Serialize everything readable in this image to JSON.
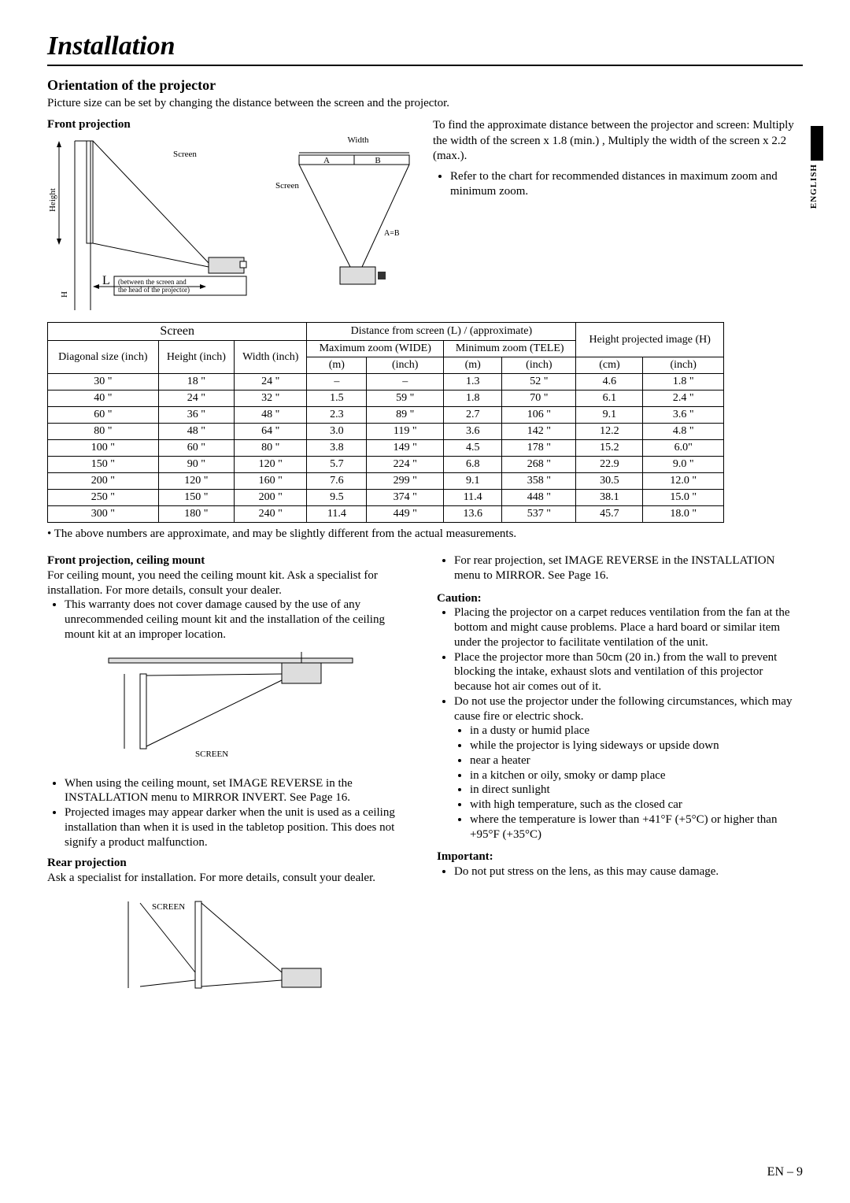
{
  "pageTitle": "Installation",
  "sectionHeading": "Orientation of the projector",
  "intro": "Picture size can be set by changing the distance between the screen and the projector.",
  "frontProjectionLabel": "Front projection",
  "sideTab": {
    "language": "ENGLISH"
  },
  "diagram": {
    "screenLabel": "Screen",
    "widthLabel": "Width",
    "heightLabel": "Height",
    "hLabel": "H",
    "lLabel": "L",
    "lDesc1": "(between the screen and",
    "lDesc2": "the head of the projector)",
    "aLabel": "A",
    "bLabel": "B",
    "abEq": "A=B"
  },
  "rightNotes": {
    "line1": "To find the approximate distance between the projector and screen: Multiply the width of the screen x 1.8 (min.) , Multiply the width of the screen x 2.2 (max.).",
    "bullet1": "Refer to the chart for recommended distances in maximum zoom and minimum zoom."
  },
  "table": {
    "groupHeaders": {
      "screen": "Screen",
      "distance": "Distance from screen (L) / (approximate)",
      "heightProj": "Height projected image (H)"
    },
    "subHeaders": {
      "diag": "Diagonal size (inch)",
      "height": "Height (inch)",
      "width": "Width (inch)",
      "maxZoom": "Maximum zoom (WIDE)",
      "minZoom": "Minimum zoom (TELE)",
      "m": "(m)",
      "inch": "(inch)",
      "cm": "(cm)"
    },
    "rows": [
      {
        "d": "30 \"",
        "h": "18 \"",
        "w": "24 \"",
        "mx_m": "–",
        "mx_in": "–",
        "mn_m": "1.3",
        "mn_in": "52 \"",
        "hp_cm": "4.6",
        "hp_in": "1.8 \""
      },
      {
        "d": "40 \"",
        "h": "24 \"",
        "w": "32 \"",
        "mx_m": "1.5",
        "mx_in": "59 \"",
        "mn_m": "1.8",
        "mn_in": "70 \"",
        "hp_cm": "6.1",
        "hp_in": "2.4 \""
      },
      {
        "d": "60 \"",
        "h": "36 \"",
        "w": "48 \"",
        "mx_m": "2.3",
        "mx_in": "89 \"",
        "mn_m": "2.7",
        "mn_in": "106 \"",
        "hp_cm": "9.1",
        "hp_in": "3.6 \""
      },
      {
        "d": "80 \"",
        "h": "48 \"",
        "w": "64 \"",
        "mx_m": "3.0",
        "mx_in": "119 \"",
        "mn_m": "3.6",
        "mn_in": "142 \"",
        "hp_cm": "12.2",
        "hp_in": "4.8 \""
      },
      {
        "d": "100 \"",
        "h": "60 \"",
        "w": "80 \"",
        "mx_m": "3.8",
        "mx_in": "149 \"",
        "mn_m": "4.5",
        "mn_in": "178 \"",
        "hp_cm": "15.2",
        "hp_in": "6.0\""
      },
      {
        "d": "150 \"",
        "h": "90 \"",
        "w": "120 \"",
        "mx_m": "5.7",
        "mx_in": "224 \"",
        "mn_m": "6.8",
        "mn_in": "268 \"",
        "hp_cm": "22.9",
        "hp_in": "9.0 \""
      },
      {
        "d": "200 \"",
        "h": "120 \"",
        "w": "160 \"",
        "mx_m": "7.6",
        "mx_in": "299 \"",
        "mn_m": "9.1",
        "mn_in": "358 \"",
        "hp_cm": "30.5",
        "hp_in": "12.0 \""
      },
      {
        "d": "250 \"",
        "h": "150 \"",
        "w": "200 \"",
        "mx_m": "9.5",
        "mx_in": "374 \"",
        "mn_m": "11.4",
        "mn_in": "448 \"",
        "hp_cm": "38.1",
        "hp_in": "15.0 \""
      },
      {
        "d": "300 \"",
        "h": "180 \"",
        "w": "240 \"",
        "mx_m": "11.4",
        "mx_in": "449 \"",
        "mn_m": "13.6",
        "mn_in": "537 \"",
        "hp_cm": "45.7",
        "hp_in": "18.0 \""
      }
    ],
    "note": "The above numbers are approximate, and may be slightly different from the actual measurements."
  },
  "lowerLeft": {
    "ceilingHeading": "Front projection, ceiling mount",
    "ceilingText": "For ceiling mount, you need the ceiling mount kit. Ask a specialist for installation. For more details, consult your dealer.",
    "ceilingBullet1": "This warranty does not cover damage caused by the use of any unrecommended ceiling mount kit and the installation of the ceiling mount kit at an improper location.",
    "screenLabel": "SCREEN",
    "ceilingBullet2": "When using the ceiling mount, set IMAGE REVERSE in the INSTALLATION menu to MIRROR INVERT. See Page 16.",
    "ceilingBullet3": "Projected images may appear darker when the unit is used as a ceiling installation than when it is used in the tabletop position. This does not signify a product malfunction.",
    "rearHeading": "Rear projection",
    "rearText": "Ask a specialist for installation.  For more details, consult your dealer.",
    "rearScreenLabel": "SCREEN"
  },
  "lowerRight": {
    "rearBullet": "For rear projection, set IMAGE REVERSE in the INSTALLATION menu to MIRROR.  See Page 16.",
    "cautionHeading": "Caution:",
    "cautionBullets": [
      "Placing the projector on a carpet reduces ventilation from the fan at the bottom and might cause problems. Place a hard board or similar item under the projector to facilitate ventilation of the unit.",
      "Place the projector more than 50cm (20 in.) from the wall to prevent blocking the intake, exhaust slots and ventilation of this projector because hot air comes out of it.",
      "Do not use the projector under the following circumstances, which may cause fire or electric shock."
    ],
    "subBullets": [
      "in a dusty or humid place",
      "while the projector is lying sideways or upside down",
      "near a heater",
      "in a kitchen or oily, smoky or damp place",
      "in direct sunlight",
      "with high temperature, such as the closed car",
      "where the temperature is lower than +41°F (+5°C) or higher than +95°F (+35°C)"
    ],
    "importantHeading": "Important:",
    "importantBullet": "Do not put stress on the lens, as this may cause damage."
  },
  "pageNumber": "EN – 9"
}
